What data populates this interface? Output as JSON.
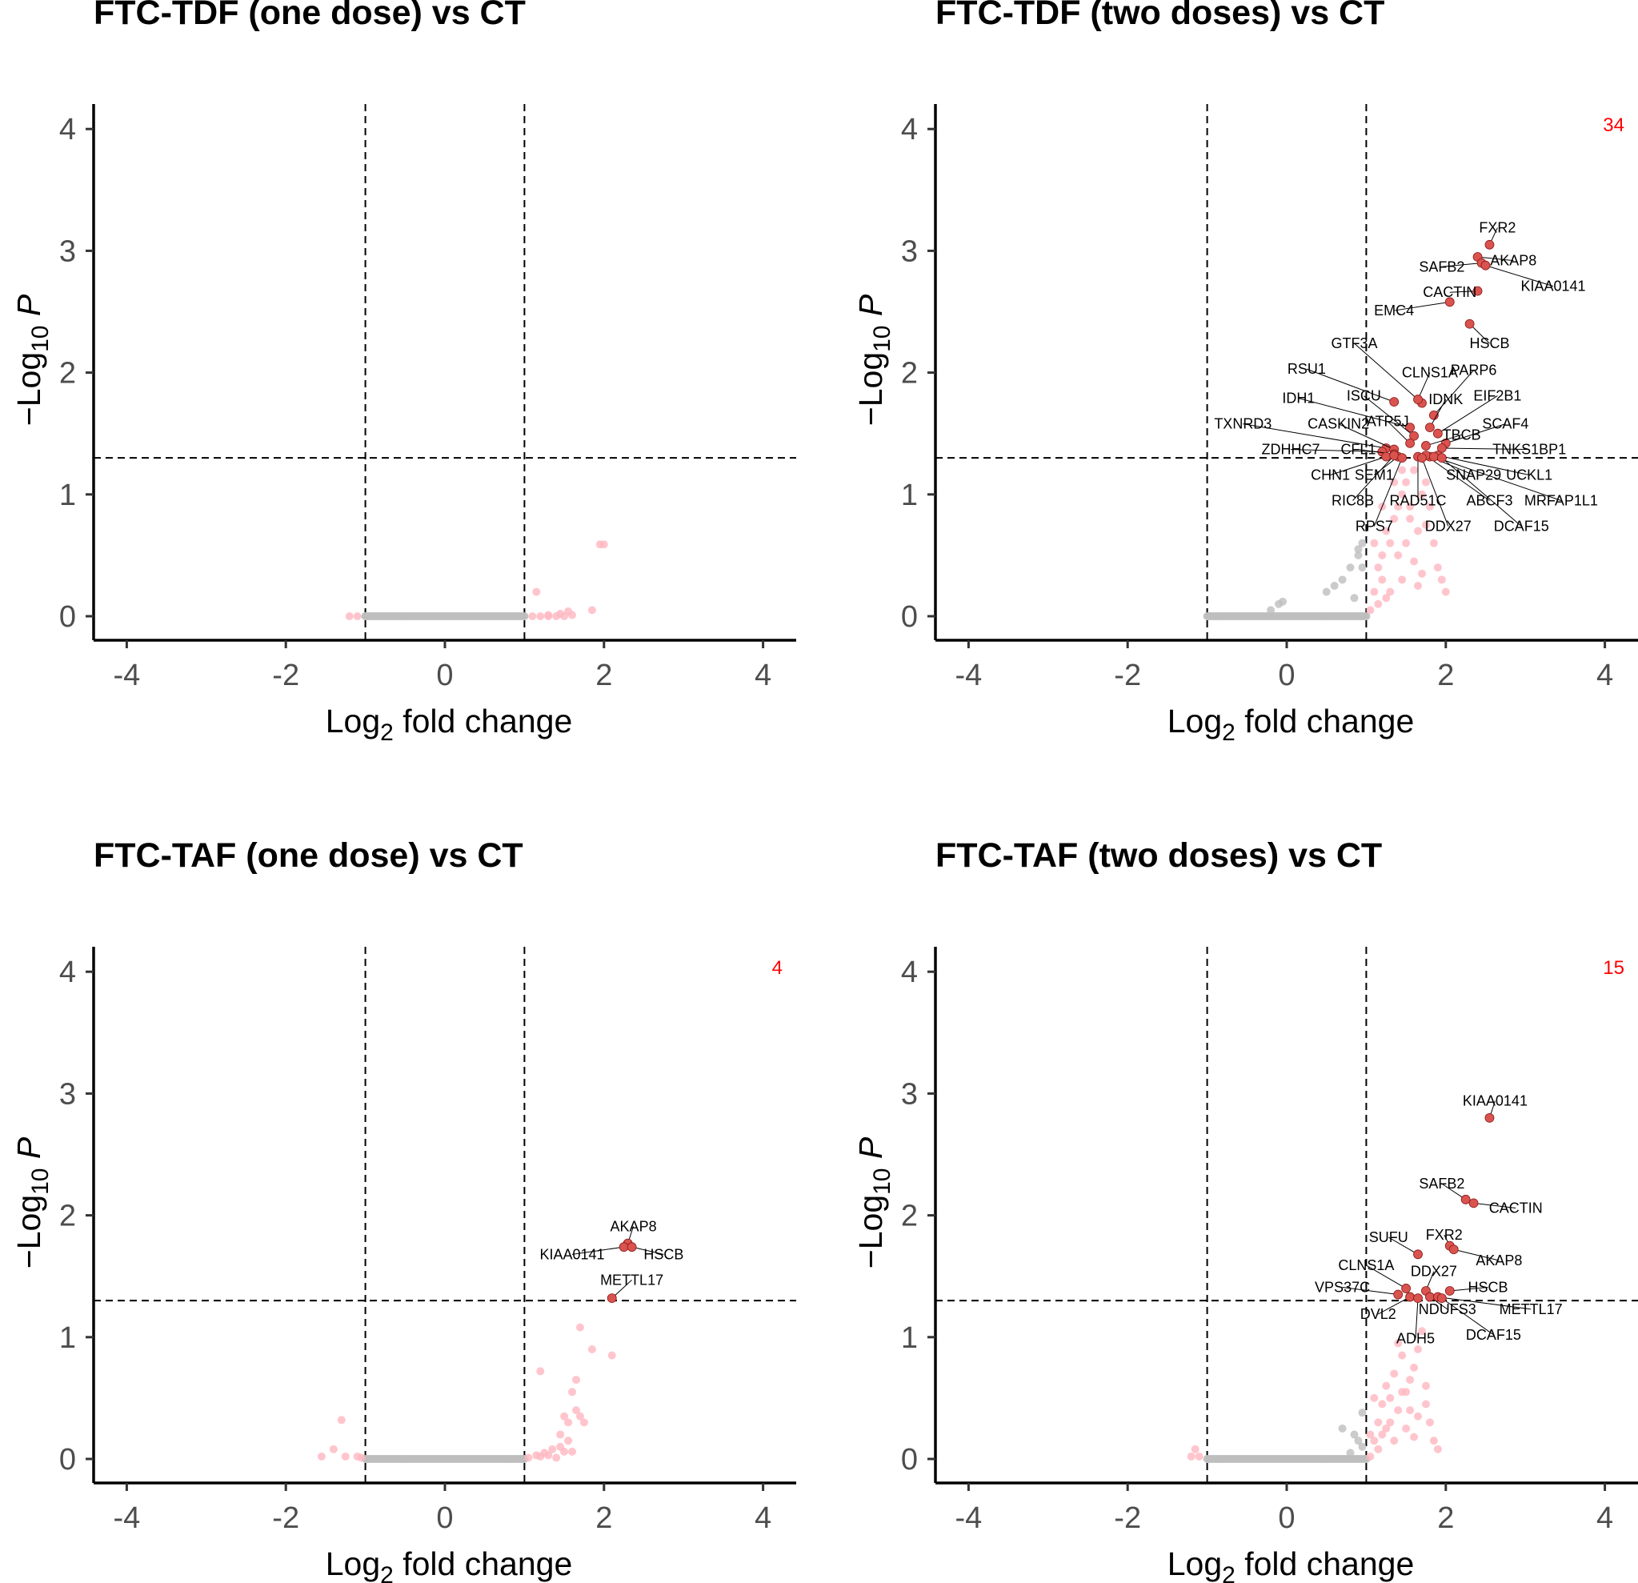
{
  "chart_data": [
    {
      "type": "scatter",
      "title": "FTC-TDF (one dose) vs CT",
      "xlabel": "Log2 fold change",
      "ylabel": "−Log10 P",
      "xlim": [
        -4.4,
        4.4
      ],
      "ylim": [
        -0.2,
        4.2
      ],
      "xticks": [
        -4,
        -2,
        0,
        2,
        4
      ],
      "yticks": [
        0,
        1,
        2,
        3,
        4
      ],
      "fc_cutoff": 1,
      "p_cutoff": 1.3,
      "significant_count": "",
      "colors": {
        "ns": "#bebebe",
        "fc": "#ffb6c1",
        "sig": "#d9534f",
        "count": "#ff0000"
      },
      "nonsig_points": [
        [
          -1.2,
          0
        ],
        [
          -1.1,
          0
        ],
        [
          -1.0,
          0
        ],
        [
          1.1,
          0
        ],
        [
          1.2,
          0
        ],
        [
          1.3,
          0
        ],
        [
          1.4,
          0
        ],
        [
          1.5,
          0
        ],
        [
          1.55,
          0.04
        ],
        [
          1.45,
          0.02
        ],
        [
          1.15,
          0.2
        ],
        [
          1.85,
          0.05
        ],
        [
          1.95,
          0.59
        ],
        [
          2.0,
          0.59
        ],
        [
          1.3,
          0.01
        ],
        [
          1.6,
          0.01
        ]
      ],
      "ns_band": [
        -1.0,
        1.0
      ],
      "significant": []
    },
    {
      "type": "scatter",
      "title": "FTC-TDF (two doses) vs CT",
      "xlabel": "Log2 fold change",
      "ylabel": "−Log10 P",
      "xlim": [
        -4.4,
        4.4
      ],
      "ylim": [
        -0.2,
        4.2
      ],
      "xticks": [
        -4,
        -2,
        0,
        2,
        4
      ],
      "yticks": [
        0,
        1,
        2,
        3,
        4
      ],
      "fc_cutoff": 1,
      "p_cutoff": 1.3,
      "significant_count": "34",
      "colors": {
        "ns": "#bebebe",
        "fc": "#ffb6c1",
        "sig": "#d9534f",
        "count": "#ff0000"
      },
      "nonsig_points": [
        [
          -0.1,
          0.1
        ],
        [
          -0.05,
          0.12
        ],
        [
          0.5,
          0.2
        ],
        [
          0.6,
          0.25
        ],
        [
          0.8,
          0.4
        ],
        [
          0.9,
          0.55
        ],
        [
          0.95,
          0.4
        ],
        [
          0.7,
          0.3
        ],
        [
          0.85,
          0.15
        ],
        [
          0.9,
          0.5
        ],
        [
          0.95,
          0.6
        ],
        [
          -0.2,
          0.05
        ],
        [
          1.05,
          0.05
        ],
        [
          1.1,
          0.2
        ],
        [
          1.15,
          0.4
        ],
        [
          1.2,
          0.5
        ],
        [
          1.25,
          0.7
        ],
        [
          1.3,
          0.6
        ],
        [
          1.35,
          0.8
        ],
        [
          1.4,
          0.9
        ],
        [
          1.45,
          1.0
        ],
        [
          1.5,
          1.1
        ],
        [
          1.55,
          0.9
        ],
        [
          1.6,
          1.2
        ],
        [
          1.65,
          0.7
        ],
        [
          1.7,
          1.0
        ],
        [
          1.75,
          1.1
        ],
        [
          1.8,
          0.9
        ],
        [
          1.85,
          0.6
        ],
        [
          1.9,
          0.4
        ],
        [
          1.95,
          0.3
        ],
        [
          2.0,
          0.2
        ],
        [
          1.2,
          0.3
        ],
        [
          1.3,
          0.2
        ],
        [
          1.4,
          0.5
        ],
        [
          1.5,
          0.6
        ],
        [
          1.6,
          0.45
        ],
        [
          1.7,
          0.35
        ],
        [
          1.1,
          0.6
        ],
        [
          1.25,
          0.15
        ],
        [
          1.45,
          0.3
        ],
        [
          1.65,
          0.25
        ],
        [
          1.55,
          0.8
        ],
        [
          1.35,
          1.1
        ],
        [
          1.45,
          1.2
        ],
        [
          1.75,
          0.75
        ],
        [
          1.2,
          0.9
        ],
        [
          1.15,
          0.1
        ]
      ],
      "ns_band": [
        -1.0,
        1.0
      ],
      "significant": [
        {
          "name": "FXR2",
          "x": 2.55,
          "y": 3.05,
          "lx": 2.65,
          "ly": 3.15
        },
        {
          "name": "AKAP8",
          "x": 2.4,
          "y": 2.95,
          "lx": 2.85,
          "ly": 2.88
        },
        {
          "name": "SAFB2",
          "x": 2.45,
          "y": 2.9,
          "lx": 1.95,
          "ly": 2.83
        },
        {
          "name": "KIAA0141",
          "x": 2.5,
          "y": 2.88,
          "lx": 3.35,
          "ly": 2.67
        },
        {
          "name": "CACTIN",
          "x": 2.4,
          "y": 2.67,
          "lx": 2.05,
          "ly": 2.62
        },
        {
          "name": "EMC4",
          "x": 2.05,
          "y": 2.58,
          "lx": 1.35,
          "ly": 2.47
        },
        {
          "name": "HSCB",
          "x": 2.3,
          "y": 2.4,
          "lx": 2.55,
          "ly": 2.2
        },
        {
          "name": "GTF3A",
          "x": 1.7,
          "y": 1.75,
          "lx": 0.85,
          "ly": 2.2
        },
        {
          "name": "CLNS1A",
          "x": 1.65,
          "y": 1.78,
          "lx": 1.8,
          "ly": 1.96
        },
        {
          "name": "PARP6",
          "x": 1.85,
          "y": 1.65,
          "lx": 2.35,
          "ly": 1.98
        },
        {
          "name": "RSU1",
          "x": 1.35,
          "y": 1.76,
          "lx": 0.25,
          "ly": 1.99
        },
        {
          "name": "IDNK",
          "x": 1.8,
          "y": 1.55,
          "lx": 2.0,
          "ly": 1.74
        },
        {
          "name": "EIF2B1",
          "x": 1.9,
          "y": 1.5,
          "lx": 2.65,
          "ly": 1.77
        },
        {
          "name": "IDH1",
          "x": 1.55,
          "y": 1.55,
          "lx": 0.15,
          "ly": 1.75
        },
        {
          "name": "ISCU",
          "x": 1.6,
          "y": 1.48,
          "lx": 0.97,
          "ly": 1.77
        },
        {
          "name": "SCAF4",
          "x": 2.0,
          "y": 1.42,
          "lx": 2.75,
          "ly": 1.54
        },
        {
          "name": "TXNRD3",
          "x": 1.25,
          "y": 1.38,
          "lx": -0.55,
          "ly": 1.54
        },
        {
          "name": "CASKIN2",
          "x": 1.35,
          "y": 1.37,
          "lx": 0.65,
          "ly": 1.54
        },
        {
          "name": "ATP5J",
          "x": 1.55,
          "y": 1.42,
          "lx": 1.27,
          "ly": 1.56
        },
        {
          "name": "TBCB",
          "x": 1.75,
          "y": 1.4,
          "lx": 2.2,
          "ly": 1.45
        },
        {
          "name": "TNKS1BP1",
          "x": 1.95,
          "y": 1.38,
          "lx": 3.05,
          "ly": 1.33
        },
        {
          "name": "ZDHHC7",
          "x": 1.2,
          "y": 1.35,
          "lx": 0.05,
          "ly": 1.33
        },
        {
          "name": "CFL1",
          "x": 1.35,
          "y": 1.33,
          "lx": 0.9,
          "ly": 1.33
        },
        {
          "name": "UCKL1",
          "x": 1.9,
          "y": 1.32,
          "lx": 3.05,
          "ly": 1.12
        },
        {
          "name": "SNAP29",
          "x": 1.8,
          "y": 1.31,
          "lx": 2.35,
          "ly": 1.12
        },
        {
          "name": "CHN1",
          "x": 1.25,
          "y": 1.31,
          "lx": 0.55,
          "ly": 1.12
        },
        {
          "name": "SEM1",
          "x": 1.4,
          "y": 1.31,
          "lx": 1.1,
          "ly": 1.12
        },
        {
          "name": "RIC8B",
          "x": 1.35,
          "y": 1.32,
          "lx": 0.83,
          "ly": 0.91
        },
        {
          "name": "RAD51C",
          "x": 1.65,
          "y": 1.31,
          "lx": 1.65,
          "ly": 0.91
        },
        {
          "name": "ABCF3",
          "x": 1.75,
          "y": 1.32,
          "lx": 2.55,
          "ly": 0.91
        },
        {
          "name": "MRFAP1L1",
          "x": 1.85,
          "y": 1.31,
          "lx": 3.45,
          "ly": 0.91
        },
        {
          "name": "RPS7",
          "x": 1.45,
          "y": 1.3,
          "lx": 1.1,
          "ly": 0.7
        },
        {
          "name": "DDX27",
          "x": 1.7,
          "y": 1.3,
          "lx": 2.03,
          "ly": 0.7
        },
        {
          "name": "DCAF15",
          "x": 1.95,
          "y": 1.3,
          "lx": 2.95,
          "ly": 0.7
        }
      ]
    },
    {
      "type": "scatter",
      "title": "FTC-TAF (one dose) vs CT",
      "xlabel": "Log2 fold change",
      "ylabel": "−Log10 P",
      "xlim": [
        -4.4,
        4.4
      ],
      "ylim": [
        -0.2,
        4.2
      ],
      "xticks": [
        -4,
        -2,
        0,
        2,
        4
      ],
      "yticks": [
        0,
        1,
        2,
        3,
        4
      ],
      "fc_cutoff": 1,
      "p_cutoff": 1.3,
      "significant_count": "4",
      "colors": {
        "ns": "#bebebe",
        "fc": "#ffb6c1",
        "sig": "#d9534f",
        "count": "#ff0000"
      },
      "nonsig_points": [
        [
          -1.55,
          0.02
        ],
        [
          -1.4,
          0.08
        ],
        [
          -1.3,
          0.32
        ],
        [
          -1.25,
          0.02
        ],
        [
          -1.1,
          0.02
        ],
        [
          -1.05,
          0.01
        ],
        [
          1.05,
          0.01
        ],
        [
          1.15,
          0.03
        ],
        [
          1.25,
          0.05
        ],
        [
          1.35,
          0.08
        ],
        [
          1.45,
          0.1
        ],
        [
          1.5,
          0.35
        ],
        [
          1.55,
          0.3
        ],
        [
          1.6,
          0.55
        ],
        [
          1.65,
          0.4
        ],
        [
          1.7,
          0.35
        ],
        [
          1.75,
          0.3
        ],
        [
          1.2,
          0.02
        ],
        [
          1.3,
          0.03
        ],
        [
          1.4,
          0.01
        ],
        [
          1.5,
          0.06
        ],
        [
          1.6,
          0.06
        ],
        [
          1.2,
          0.72
        ],
        [
          1.7,
          1.08
        ],
        [
          1.85,
          0.9
        ],
        [
          2.1,
          0.85
        ],
        [
          1.65,
          0.65
        ],
        [
          1.55,
          0.15
        ],
        [
          1.45,
          0.2
        ]
      ],
      "ns_band": [
        -1.0,
        1.0
      ],
      "significant": [
        {
          "name": "AKAP8",
          "x": 2.3,
          "y": 1.77,
          "lx": 2.37,
          "ly": 1.87
        },
        {
          "name": "KIAA0141",
          "x": 2.25,
          "y": 1.74,
          "lx": 1.6,
          "ly": 1.64
        },
        {
          "name": "HSCB",
          "x": 2.35,
          "y": 1.74,
          "lx": 2.75,
          "ly": 1.64
        },
        {
          "name": "METTL17",
          "x": 2.1,
          "y": 1.32,
          "lx": 2.35,
          "ly": 1.43
        }
      ]
    },
    {
      "type": "scatter",
      "title": "FTC-TAF (two doses) vs CT",
      "xlabel": "Log2 fold change",
      "ylabel": "−Log10 P",
      "xlim": [
        -4.4,
        4.4
      ],
      "ylim": [
        -0.2,
        4.2
      ],
      "xticks": [
        -4,
        -2,
        0,
        2,
        4
      ],
      "yticks": [
        0,
        1,
        2,
        3,
        4
      ],
      "fc_cutoff": 1,
      "p_cutoff": 1.3,
      "significant_count": "15",
      "colors": {
        "ns": "#bebebe",
        "fc": "#ffb6c1",
        "sig": "#d9534f",
        "count": "#ff0000"
      },
      "nonsig_points": [
        [
          -1.15,
          0.08
        ],
        [
          -1.1,
          0.02
        ],
        [
          -1.2,
          0.02
        ],
        [
          0.8,
          0.05
        ],
        [
          0.9,
          0.15
        ],
        [
          0.95,
          0.38
        ],
        [
          0.85,
          0.2
        ],
        [
          0.7,
          0.25
        ],
        [
          0.95,
          0.1
        ],
        [
          1.05,
          0.02
        ],
        [
          1.1,
          0.15
        ],
        [
          1.15,
          0.3
        ],
        [
          1.2,
          0.45
        ],
        [
          1.25,
          0.6
        ],
        [
          1.3,
          0.5
        ],
        [
          1.35,
          0.7
        ],
        [
          1.4,
          0.95
        ],
        [
          1.45,
          0.85
        ],
        [
          1.5,
          0.55
        ],
        [
          1.55,
          0.4
        ],
        [
          1.6,
          0.75
        ],
        [
          1.65,
          0.9
        ],
        [
          1.7,
          1.05
        ],
        [
          1.75,
          0.6
        ],
        [
          1.8,
          0.3
        ],
        [
          1.85,
          0.15
        ],
        [
          1.9,
          0.08
        ],
        [
          1.2,
          0.2
        ],
        [
          1.3,
          0.3
        ],
        [
          1.4,
          0.4
        ],
        [
          1.5,
          0.25
        ],
        [
          1.6,
          0.18
        ],
        [
          1.1,
          0.5
        ],
        [
          1.25,
          0.25
        ],
        [
          1.35,
          0.15
        ],
        [
          1.45,
          0.55
        ],
        [
          1.55,
          0.65
        ],
        [
          1.65,
          0.35
        ],
        [
          1.75,
          0.45
        ],
        [
          1.15,
          0.08
        ],
        [
          1.05,
          0.2
        ]
      ],
      "ns_band": [
        -1.0,
        1.0
      ],
      "significant": [
        {
          "name": "KIAA0141",
          "x": 2.55,
          "y": 2.8,
          "lx": 2.62,
          "ly": 2.9
        },
        {
          "name": "SAFB2",
          "x": 2.25,
          "y": 2.13,
          "lx": 1.95,
          "ly": 2.22
        },
        {
          "name": "CACTIN",
          "x": 2.35,
          "y": 2.1,
          "lx": 2.88,
          "ly": 2.02
        },
        {
          "name": "SUFU",
          "x": 1.65,
          "y": 1.68,
          "lx": 1.28,
          "ly": 1.78
        },
        {
          "name": "FXR2",
          "x": 2.05,
          "y": 1.75,
          "lx": 1.98,
          "ly": 1.8
        },
        {
          "name": "AKAP8",
          "x": 2.1,
          "y": 1.72,
          "lx": 2.67,
          "ly": 1.59
        },
        {
          "name": "CLNS1A",
          "x": 1.5,
          "y": 1.4,
          "lx": 1.0,
          "ly": 1.55
        },
        {
          "name": "DDX27",
          "x": 1.75,
          "y": 1.38,
          "lx": 1.85,
          "ly": 1.5
        },
        {
          "name": "HSCB",
          "x": 2.05,
          "y": 1.38,
          "lx": 2.53,
          "ly": 1.37
        },
        {
          "name": "VPS37C",
          "x": 1.4,
          "y": 1.35,
          "lx": 0.7,
          "ly": 1.37
        },
        {
          "name": "DVL2",
          "x": 1.55,
          "y": 1.33,
          "lx": 1.15,
          "ly": 1.15
        },
        {
          "name": "NDUFS3",
          "x": 1.8,
          "y": 1.33,
          "lx": 2.02,
          "ly": 1.19
        },
        {
          "name": "METTL17",
          "x": 1.9,
          "y": 1.33,
          "lx": 3.07,
          "ly": 1.19
        },
        {
          "name": "ADH5",
          "x": 1.65,
          "y": 1.32,
          "lx": 1.62,
          "ly": 0.95
        },
        {
          "name": "DCAF15",
          "x": 1.95,
          "y": 1.32,
          "lx": 2.6,
          "ly": 0.98
        }
      ]
    }
  ]
}
